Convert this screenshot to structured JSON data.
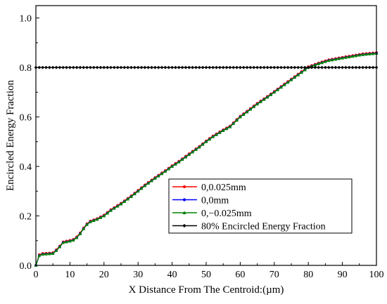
{
  "chart_data": {
    "type": "line",
    "title": "",
    "xlabel": "X Distance From The Centroid:(µm)",
    "ylabel": "Encircled Energy Fraction",
    "xlim": [
      0,
      100
    ],
    "ylim": [
      0,
      1.05
    ],
    "x_ticks": [
      "0",
      "10",
      "20",
      "30",
      "40",
      "50",
      "60",
      "70",
      "80",
      "90",
      "100"
    ],
    "y_ticks": [
      "0.0",
      "0.2",
      "0.4",
      "0.6",
      "0.8",
      "1.0"
    ],
    "grid": false,
    "legend": "center-right",
    "curve_points": [
      [
        0,
        0.0
      ],
      [
        1,
        0.04
      ],
      [
        2,
        0.045
      ],
      [
        5,
        0.048
      ],
      [
        6,
        0.06
      ],
      [
        7,
        0.075
      ],
      [
        8,
        0.092
      ],
      [
        10,
        0.098
      ],
      [
        11,
        0.102
      ],
      [
        12,
        0.112
      ],
      [
        13,
        0.128
      ],
      [
        14,
        0.148
      ],
      [
        15,
        0.165
      ],
      [
        16,
        0.176
      ],
      [
        18,
        0.186
      ],
      [
        20,
        0.2
      ],
      [
        22,
        0.222
      ],
      [
        25,
        0.248
      ],
      [
        28,
        0.278
      ],
      [
        30,
        0.3
      ],
      [
        32,
        0.322
      ],
      [
        35,
        0.352
      ],
      [
        38,
        0.38
      ],
      [
        40,
        0.4
      ],
      [
        42,
        0.418
      ],
      [
        45,
        0.448
      ],
      [
        48,
        0.478
      ],
      [
        50,
        0.5
      ],
      [
        52,
        0.52
      ],
      [
        55,
        0.545
      ],
      [
        57,
        0.56
      ],
      [
        60,
        0.6
      ],
      [
        62,
        0.62
      ],
      [
        65,
        0.652
      ],
      [
        68,
        0.68
      ],
      [
        70,
        0.7
      ],
      [
        72,
        0.72
      ],
      [
        75,
        0.75
      ],
      [
        78,
        0.78
      ],
      [
        80,
        0.8
      ],
      [
        83,
        0.815
      ],
      [
        86,
        0.828
      ],
      [
        90,
        0.838
      ],
      [
        93,
        0.845
      ],
      [
        96,
        0.852
      ],
      [
        100,
        0.857
      ]
    ],
    "series": [
      {
        "name": "0,0.025mm",
        "color": "#ff0000",
        "marker": "circle",
        "dy": 0.003
      },
      {
        "name": "0,0mm",
        "color": "#0000ff",
        "marker": "circle",
        "dy": 0.0
      },
      {
        "name": "0,−0.025mm",
        "color": "#008000",
        "marker": "triangle",
        "dy": 0.0
      },
      {
        "name": "80% Encircled Energy Fraction",
        "color": "#000000",
        "marker": "diamond",
        "constant": 0.8
      }
    ]
  }
}
